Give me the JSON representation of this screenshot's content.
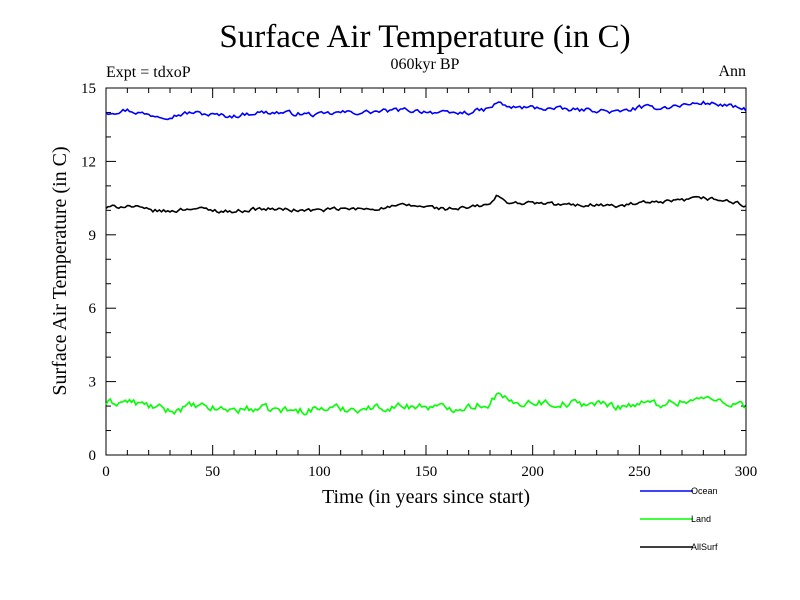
{
  "chart_data": {
    "type": "line",
    "title": "Surface Air Temperature (in C)",
    "subtitle": "060kyr BP",
    "left_note": "Expt = tdxoP",
    "right_note": "Ann",
    "xlabel": "Time (in years since start)",
    "ylabel": "Surface Air Temperature (in C)",
    "xlim": [
      0,
      300
    ],
    "ylim": [
      0,
      15
    ],
    "xticks": [
      "0",
      "50",
      "100",
      "150",
      "200",
      "250",
      "300"
    ],
    "yticks": [
      "0",
      "3",
      "6",
      "9",
      "12",
      "15"
    ],
    "grid": false,
    "legend_position": "bottom-right",
    "x": [
      0,
      10,
      20,
      30,
      40,
      50,
      60,
      70,
      80,
      90,
      100,
      110,
      120,
      130,
      140,
      150,
      160,
      170,
      180,
      183,
      190,
      200,
      210,
      220,
      230,
      240,
      250,
      260,
      270,
      280,
      290,
      300
    ],
    "series": [
      {
        "name": "Ocean",
        "color": "#0000ff",
        "values": [
          14.0,
          14.1,
          13.9,
          13.85,
          14.0,
          13.9,
          13.85,
          14.0,
          14.0,
          13.95,
          13.9,
          14.0,
          14.0,
          14.05,
          14.1,
          14.05,
          13.95,
          14.0,
          14.15,
          14.4,
          14.2,
          14.2,
          14.15,
          14.1,
          14.1,
          14.0,
          14.2,
          14.2,
          14.3,
          14.4,
          14.3,
          14.1
        ]
      },
      {
        "name": "Land",
        "color": "#00ff00",
        "values": [
          2.1,
          2.2,
          2.0,
          1.8,
          2.0,
          1.9,
          1.85,
          1.9,
          1.85,
          1.8,
          1.9,
          1.9,
          1.9,
          1.95,
          2.0,
          2.0,
          1.9,
          2.0,
          2.1,
          2.5,
          2.1,
          2.2,
          2.1,
          2.1,
          2.1,
          2.0,
          2.1,
          2.1,
          2.2,
          2.3,
          2.2,
          2.0
        ]
      },
      {
        "name": "AllSurf",
        "color": "#000000",
        "values": [
          10.1,
          10.2,
          10.0,
          9.95,
          10.1,
          10.0,
          9.95,
          10.05,
          10.05,
          10.0,
          10.0,
          10.05,
          10.05,
          10.1,
          10.2,
          10.15,
          10.05,
          10.1,
          10.25,
          10.55,
          10.3,
          10.3,
          10.25,
          10.2,
          10.25,
          10.15,
          10.3,
          10.3,
          10.4,
          10.5,
          10.4,
          10.2
        ]
      }
    ]
  }
}
